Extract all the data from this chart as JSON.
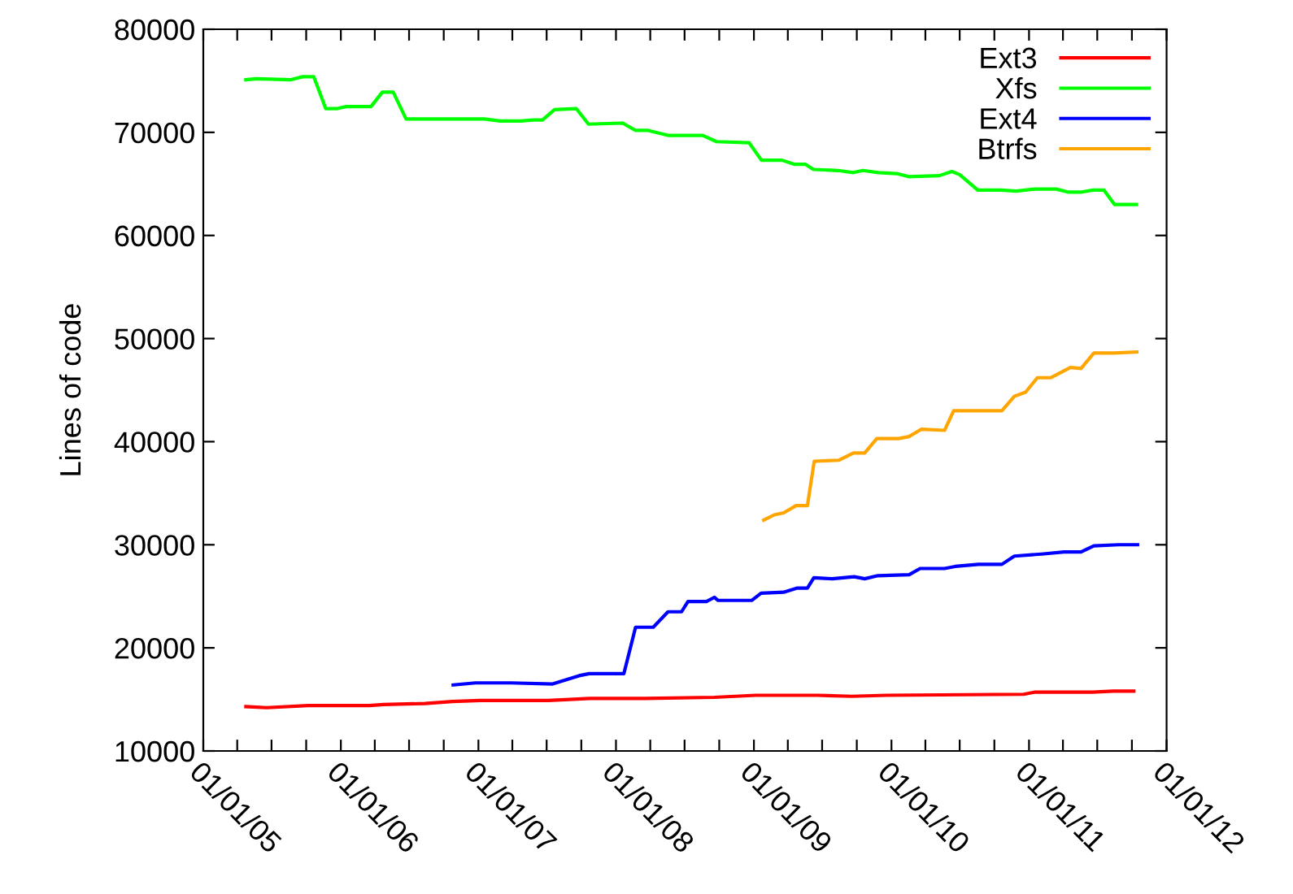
{
  "chart_data": {
    "type": "line",
    "ylabel": "Lines of code",
    "xlim": [
      "2005-01-01",
      "2012-01-01"
    ],
    "ylim": [
      10000,
      80000
    ],
    "yticks": [
      10000,
      20000,
      30000,
      40000,
      50000,
      60000,
      70000,
      80000
    ],
    "xticks": [
      {
        "value": "2005-01-01",
        "label": "01/01/05"
      },
      {
        "value": "2005-04-01",
        "label": null
      },
      {
        "value": "2005-07-01",
        "label": null
      },
      {
        "value": "2005-10-01",
        "label": null
      },
      {
        "value": "2006-01-01",
        "label": "01/01/06"
      },
      {
        "value": "2006-04-01",
        "label": null
      },
      {
        "value": "2006-07-01",
        "label": null
      },
      {
        "value": "2006-10-01",
        "label": null
      },
      {
        "value": "2007-01-01",
        "label": "01/01/07"
      },
      {
        "value": "2007-04-01",
        "label": null
      },
      {
        "value": "2007-07-01",
        "label": null
      },
      {
        "value": "2007-10-01",
        "label": null
      },
      {
        "value": "2008-01-01",
        "label": "01/01/08"
      },
      {
        "value": "2008-04-01",
        "label": null
      },
      {
        "value": "2008-07-01",
        "label": null
      },
      {
        "value": "2008-10-01",
        "label": null
      },
      {
        "value": "2009-01-01",
        "label": "01/01/09"
      },
      {
        "value": "2009-04-01",
        "label": null
      },
      {
        "value": "2009-07-01",
        "label": null
      },
      {
        "value": "2009-10-01",
        "label": null
      },
      {
        "value": "2010-01-01",
        "label": "01/01/10"
      },
      {
        "value": "2010-04-01",
        "label": null
      },
      {
        "value": "2010-07-01",
        "label": null
      },
      {
        "value": "2010-10-01",
        "label": null
      },
      {
        "value": "2011-01-01",
        "label": "01/01/11"
      },
      {
        "value": "2011-04-01",
        "label": null
      },
      {
        "value": "2011-07-01",
        "label": null
      },
      {
        "value": "2011-10-01",
        "label": null
      },
      {
        "value": "2012-01-01",
        "label": "01/01/12"
      }
    ],
    "legend": "top right",
    "grid": false,
    "marker": "none",
    "line_style": "solid",
    "series": [
      {
        "name": "Ext3",
        "color": "#ff0000",
        "x": [
          "2005-04-24",
          "2005-06-18",
          "2005-10-06",
          "2005-11-28",
          "2006-03-18",
          "2006-04-24",
          "2006-08-12",
          "2006-10-24",
          "2007-01-06",
          "2007-07-06",
          "2007-10-24",
          "2008-03-18",
          "2008-09-18",
          "2009-01-06",
          "2009-06-18",
          "2009-09-18",
          "2009-12-18",
          "2010-12-18",
          "2011-01-15",
          "2011-06-18",
          "2011-08-12",
          "2011-10-06"
        ],
        "values": [
          14300,
          14200,
          14400,
          14400,
          14400,
          14500,
          14600,
          14800,
          14900,
          14900,
          15100,
          15100,
          15200,
          15400,
          15400,
          15300,
          15400,
          15500,
          15700,
          15700,
          15800,
          15800
        ]
      },
      {
        "name": "Xfs",
        "color": "#00ff00",
        "x": [
          "2005-04-24",
          "2005-05-21",
          "2005-08-20",
          "2005-09-22",
          "2005-10-21",
          "2005-11-22",
          "2005-12-21",
          "2006-01-15",
          "2006-03-22",
          "2006-04-21",
          "2006-05-20",
          "2006-06-23",
          "2006-09-08",
          "2007-01-17",
          "2007-02-27",
          "2007-04-24",
          "2007-05-26",
          "2007-06-20",
          "2007-07-22",
          "2007-09-18",
          "2007-10-20",
          "2008-01-19",
          "2008-02-21",
          "2008-03-24",
          "2008-05-20",
          "2008-08-18",
          "2008-09-24",
          "2008-12-19",
          "2009-01-21",
          "2009-03-17",
          "2009-04-19",
          "2009-05-18",
          "2009-06-08",
          "2009-08-12",
          "2009-09-22",
          "2009-10-17",
          "2009-11-27",
          "2010-01-15",
          "2010-02-17",
          "2010-05-08",
          "2010-06-10",
          "2010-07-01",
          "2010-08-18",
          "2010-10-19",
          "2010-11-28",
          "2011-01-17",
          "2011-03-14",
          "2011-04-16",
          "2011-05-18",
          "2011-06-20",
          "2011-07-19",
          "2011-08-16",
          "2011-10-13"
        ],
        "values": [
          75100,
          75200,
          75100,
          75400,
          75400,
          72300,
          72300,
          72500,
          72500,
          73900,
          73900,
          71300,
          71300,
          71300,
          71100,
          71100,
          71200,
          71200,
          72200,
          72300,
          70800,
          70900,
          70200,
          70200,
          69700,
          69700,
          69100,
          69000,
          67300,
          67300,
          66900,
          66900,
          66400,
          66300,
          66100,
          66300,
          66100,
          66000,
          65700,
          65800,
          66200,
          65900,
          64400,
          64400,
          64300,
          64500,
          64500,
          64200,
          64200,
          64400,
          64400,
          63000,
          63000
        ]
      },
      {
        "name": "Ext4",
        "color": "#0000ff",
        "x": [
          "2006-10-26",
          "2006-12-24",
          "2007-03-28",
          "2007-07-17",
          "2007-09-25",
          "2007-10-22",
          "2008-01-22",
          "2008-02-22",
          "2008-04-09",
          "2008-05-18",
          "2008-06-23",
          "2008-07-10",
          "2008-08-28",
          "2008-09-18",
          "2008-09-28",
          "2008-12-26",
          "2009-01-20",
          "2009-03-21",
          "2009-04-26",
          "2009-05-23",
          "2009-06-09",
          "2009-07-28",
          "2009-09-24",
          "2009-10-22",
          "2009-11-26",
          "2010-02-17",
          "2010-03-18",
          "2010-05-22",
          "2010-06-19",
          "2010-08-20",
          "2010-10-21",
          "2010-11-23",
          "2011-02-03",
          "2011-04-04",
          "2011-05-19",
          "2011-06-22",
          "2011-08-27",
          "2011-10-16"
        ],
        "values": [
          16400,
          16600,
          16600,
          16500,
          17300,
          17500,
          17500,
          22000,
          22000,
          23500,
          23500,
          24500,
          24500,
          24900,
          24600,
          24600,
          25300,
          25400,
          25800,
          25800,
          26800,
          26700,
          26900,
          26700,
          27000,
          27100,
          27700,
          27700,
          27900,
          28100,
          28100,
          28900,
          29100,
          29300,
          29300,
          29900,
          30000,
          30000
        ]
      },
      {
        "name": "Btrfs",
        "color": "#ffa500",
        "x": [
          "2009-01-27",
          "2009-02-24",
          "2009-03-21",
          "2009-04-23",
          "2009-05-23",
          "2009-06-10",
          "2009-08-14",
          "2009-09-22",
          "2009-10-22",
          "2009-11-23",
          "2010-01-20",
          "2010-02-17",
          "2010-03-21",
          "2010-05-22",
          "2010-06-15",
          "2010-10-21",
          "2010-11-23",
          "2010-12-23",
          "2011-01-23",
          "2011-02-27",
          "2011-04-21",
          "2011-05-19",
          "2011-06-22",
          "2011-08-14",
          "2011-10-14"
        ],
        "values": [
          32400,
          32900,
          33100,
          33800,
          33800,
          38100,
          38200,
          38900,
          38900,
          40300,
          40300,
          40500,
          41200,
          41100,
          43000,
          43000,
          44400,
          44800,
          46200,
          46200,
          47200,
          47100,
          48600,
          48600,
          48700
        ]
      }
    ]
  }
}
